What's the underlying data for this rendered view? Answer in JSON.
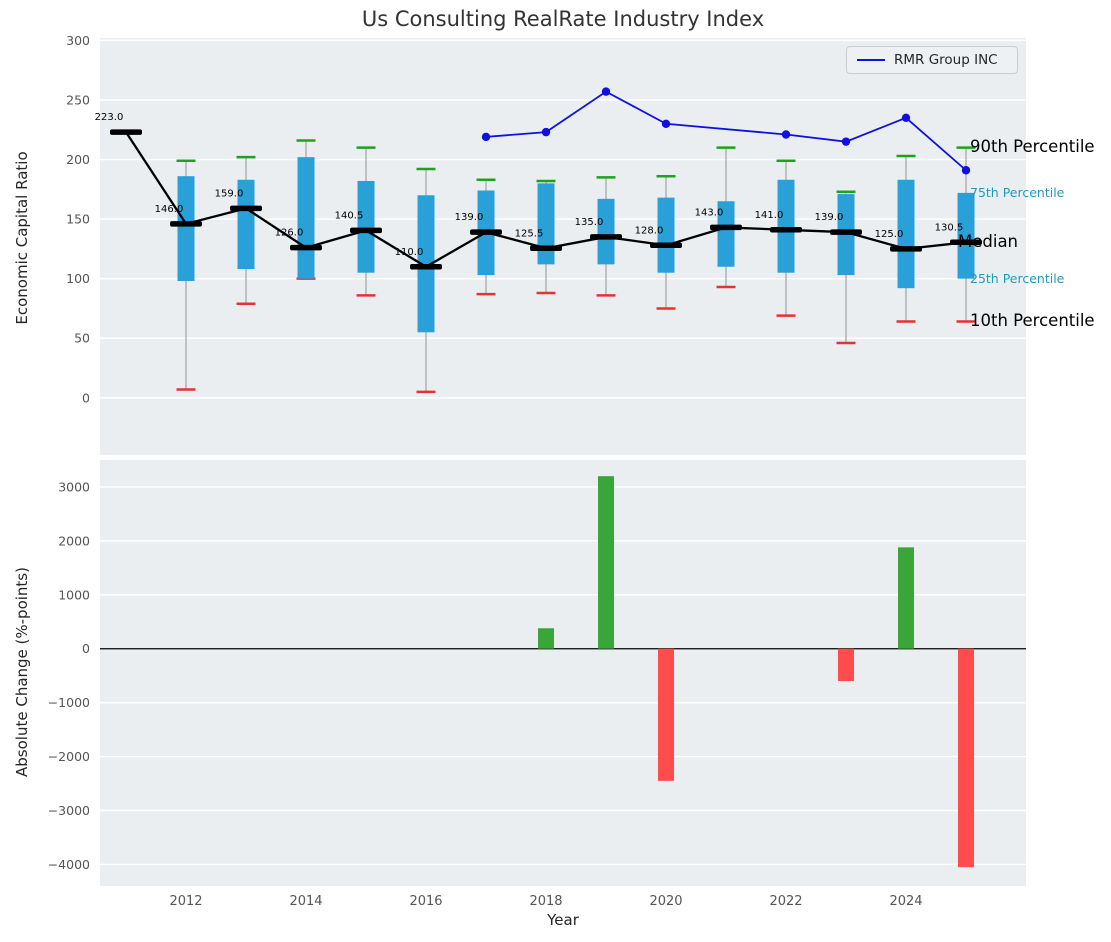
{
  "title": "Us Consulting RealRate Industry Index",
  "colors": {
    "panel_bg": "#eaeef1",
    "grid": "#ffffff",
    "tick_label": "#555555",
    "text": "#262626",
    "box": "#29a0d8",
    "whisker": "#a8a8a8",
    "p90_cap": "#1fa01f",
    "p10_cap": "#e53333",
    "median": "#000000",
    "rmr_line": "#1010e0",
    "bar_positive": "#3aa63a",
    "bar_negative": "#ff4d4d",
    "percentile_accent": "#2596be"
  },
  "chart_data": [
    {
      "type": "boxplot+line",
      "title": "Us Consulting RealRate Industry Index",
      "ylabel": "Economic Capital Ratio",
      "ylim": [
        -48,
        302
      ],
      "yticks": [
        300,
        250,
        200,
        150,
        100,
        50,
        0
      ],
      "grid": "horizontal",
      "legend": {
        "label": "RMR Group INC",
        "position": "upper-right"
      },
      "years": [
        2011,
        2012,
        2013,
        2014,
        2015,
        2016,
        2017,
        2018,
        2019,
        2020,
        2021,
        2022,
        2023,
        2024,
        2025
      ],
      "median": [
        223.0,
        146.0,
        159.0,
        126.0,
        140.5,
        110.0,
        139.0,
        125.5,
        135.0,
        128.0,
        143.0,
        141.0,
        139.0,
        125.0,
        130.5
      ],
      "p25": [
        null,
        98,
        108,
        100,
        105,
        55,
        103,
        112,
        112,
        105,
        110,
        105,
        103,
        92,
        100
      ],
      "p75": [
        null,
        186,
        183,
        202,
        182,
        170,
        174,
        180,
        167,
        168,
        165,
        183,
        171,
        183,
        172
      ],
      "p10": [
        null,
        7,
        79,
        100,
        86,
        5,
        87,
        88,
        86,
        75,
        93,
        69,
        46,
        64,
        64
      ],
      "p90": [
        null,
        199,
        202,
        216,
        210,
        192,
        183,
        182,
        185,
        186,
        210,
        199,
        173,
        203,
        210
      ],
      "series": [
        {
          "name": "RMR Group INC",
          "values": [
            null,
            null,
            null,
            null,
            null,
            null,
            219,
            223,
            257,
            230,
            null,
            221,
            215,
            235,
            191
          ]
        }
      ],
      "annotations": [
        {
          "label": "90th Percentile",
          "value": 210,
          "color": "#000000",
          "size": 16.5
        },
        {
          "label": "75th Percentile",
          "value": 172,
          "color": "#2596be",
          "size": 12.5
        },
        {
          "label": "Median",
          "value": 130.5,
          "color": "#000000",
          "size": 16.5
        },
        {
          "label": "25th Percentile",
          "value": 100,
          "color": "#2596be",
          "size": 12.5
        },
        {
          "label": "10th Percentile",
          "value": 64,
          "color": "#000000",
          "size": 16.5
        }
      ]
    },
    {
      "type": "bar",
      "ylabel": "Absolute Change (%-points)",
      "xlabel": "Year",
      "ylim": [
        -4400,
        3500
      ],
      "yticks": [
        3000,
        2000,
        1000,
        0,
        -1000,
        -2000,
        -3000,
        -4000
      ],
      "xticks": [
        2012,
        2014,
        2016,
        2018,
        2020,
        2022,
        2024
      ],
      "years": [
        2011,
        2012,
        2013,
        2014,
        2015,
        2016,
        2017,
        2018,
        2019,
        2020,
        2021,
        2022,
        2023,
        2024,
        2025
      ],
      "values": [
        null,
        null,
        null,
        null,
        null,
        null,
        null,
        380,
        3200,
        -2450,
        null,
        null,
        -600,
        1880,
        -4050
      ]
    }
  ]
}
